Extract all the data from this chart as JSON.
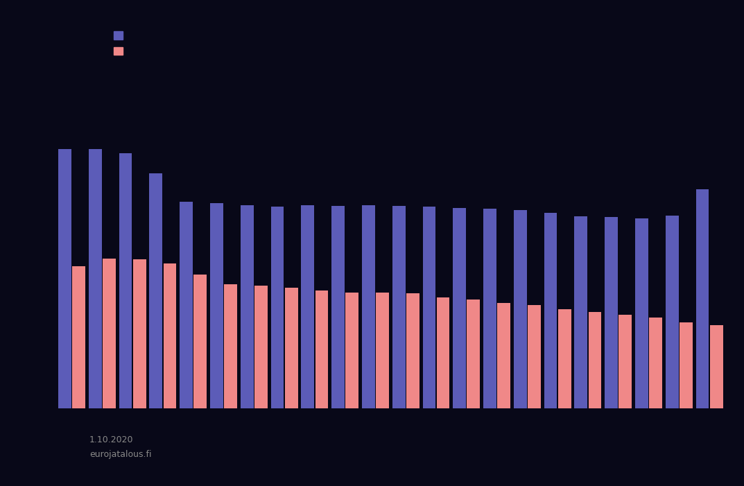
{
  "background_color": "#080818",
  "bar_color_blue": "#5c5cb8",
  "bar_color_pink": "#f08888",
  "legend_labels": [
    "",
    ""
  ],
  "blue_values": [
    3200,
    3200,
    3150,
    2900,
    2550,
    2530,
    2510,
    2490,
    2510,
    2500,
    2510,
    2500,
    2490,
    2475,
    2460,
    2450,
    2410,
    2370,
    2360,
    2345,
    2380,
    2700
  ],
  "pink_values": [
    1750,
    1850,
    1840,
    1790,
    1650,
    1530,
    1510,
    1490,
    1450,
    1430,
    1430,
    1420,
    1370,
    1340,
    1300,
    1270,
    1220,
    1190,
    1155,
    1120,
    1060,
    1030
  ],
  "footer_date": "1.10.2020",
  "footer_url": "eurojatalous.fi",
  "ylim_min": 0,
  "ylim_max": 3600,
  "n_groups": 22
}
